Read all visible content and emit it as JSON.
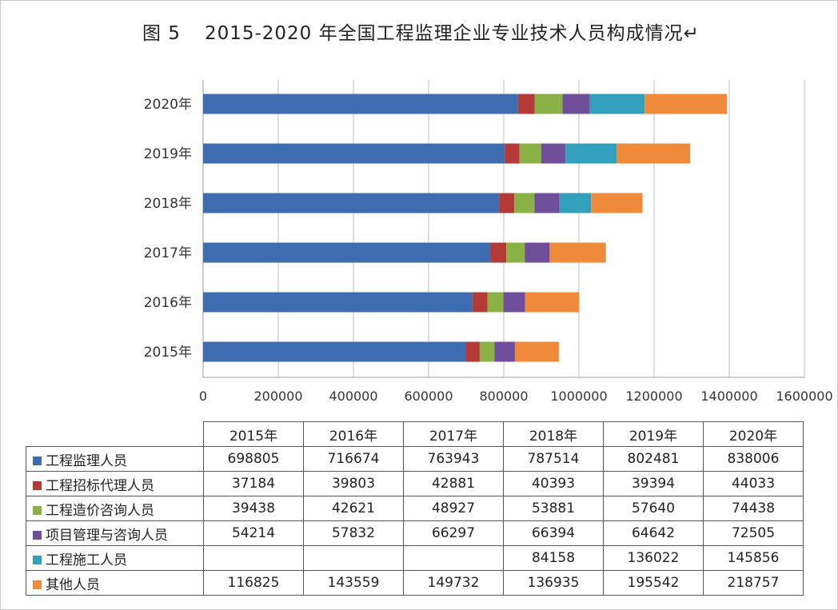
{
  "figure": {
    "number": "图 5",
    "title": "2015-2020 年全国工程监理企业专业技术人员构成情况",
    "mark": "↵"
  },
  "chart_data": {
    "type": "bar",
    "orientation": "horizontal",
    "stacked": true,
    "categories": [
      "2015年",
      "2016年",
      "2017年",
      "2018年",
      "2019年",
      "2020年"
    ],
    "series": [
      {
        "name": "工程监理人员",
        "color": "#3d6db0",
        "values": [
          698805,
          716674,
          763943,
          787514,
          802481,
          838006
        ]
      },
      {
        "name": "工程招标代理人员",
        "color": "#b33a36",
        "values": [
          37184,
          39803,
          42881,
          40393,
          39394,
          44033
        ]
      },
      {
        "name": "工程造价咨询人员",
        "color": "#8ab146",
        "values": [
          39438,
          42621,
          48927,
          53881,
          57640,
          74438
        ]
      },
      {
        "name": "项目管理与咨询人员",
        "color": "#6f4e9a",
        "values": [
          54214,
          57832,
          66297,
          66394,
          64642,
          72505
        ]
      },
      {
        "name": "工程施工人员",
        "color": "#32a0bd",
        "values": [
          null,
          null,
          null,
          84158,
          136022,
          145856
        ]
      },
      {
        "name": "其他人员",
        "color": "#ee8a3a",
        "values": [
          116825,
          143559,
          149732,
          136935,
          195542,
          218757
        ]
      }
    ],
    "xlim": [
      0,
      1600000
    ],
    "xticks": [
      "0",
      "200000",
      "400000",
      "600000",
      "800000",
      "1000000",
      "1200000",
      "1400000",
      "1600000"
    ],
    "grid": true,
    "legend": "data-table-below"
  }
}
